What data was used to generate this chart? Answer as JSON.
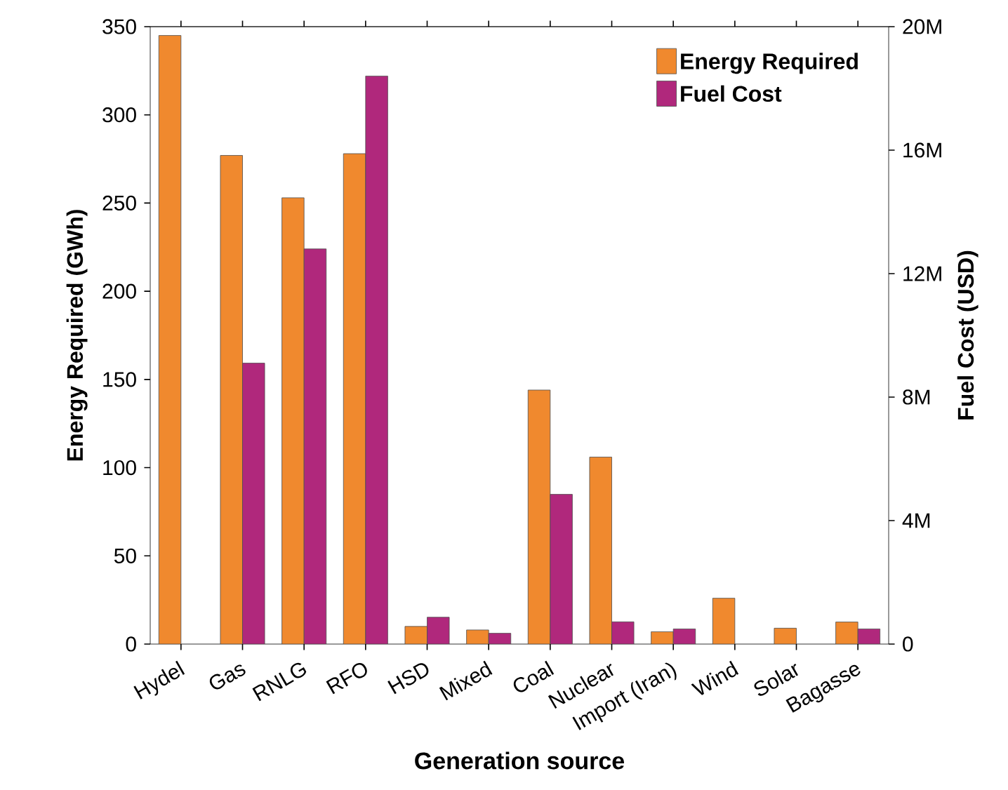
{
  "chart_data": {
    "type": "bar",
    "xlabel": "Generation source",
    "ylabel": "Energy Required (GWh)",
    "y2label": "Fuel Cost (USD)",
    "categories": [
      "Hydel",
      "Gas",
      "RNLG",
      "RFO",
      "HSD",
      "Mixed",
      "Coal",
      "Nuclear",
      "Import (Iran)",
      "Wind",
      "Solar",
      "Bagasse"
    ],
    "series": [
      {
        "name": "Energy Required",
        "color": "#f0892e",
        "values": [
          345,
          277,
          253,
          278,
          10,
          8,
          144,
          106,
          7,
          26,
          9,
          12.5
        ]
      },
      {
        "name": "Fuel Cost",
        "color": "#b0287c",
        "axis": "y2",
        "values": [
          null,
          9.1,
          12.8,
          18.4,
          0.87,
          0.35,
          4.85,
          0.72,
          0.49,
          null,
          null,
          0.49
        ]
      }
    ],
    "ylim": [
      0,
      350
    ],
    "yticks": [
      0,
      50,
      100,
      150,
      200,
      250,
      300,
      350
    ],
    "y2lim": [
      0,
      20
    ],
    "y2ticks": [
      {
        "value": 0,
        "label": "0"
      },
      {
        "value": 4,
        "label": "4M"
      },
      {
        "value": 8,
        "label": "8M"
      },
      {
        "value": 12,
        "label": "12M"
      },
      {
        "value": 16,
        "label": "16M"
      },
      {
        "value": 20,
        "label": "20M"
      }
    ],
    "legend": "top right"
  }
}
